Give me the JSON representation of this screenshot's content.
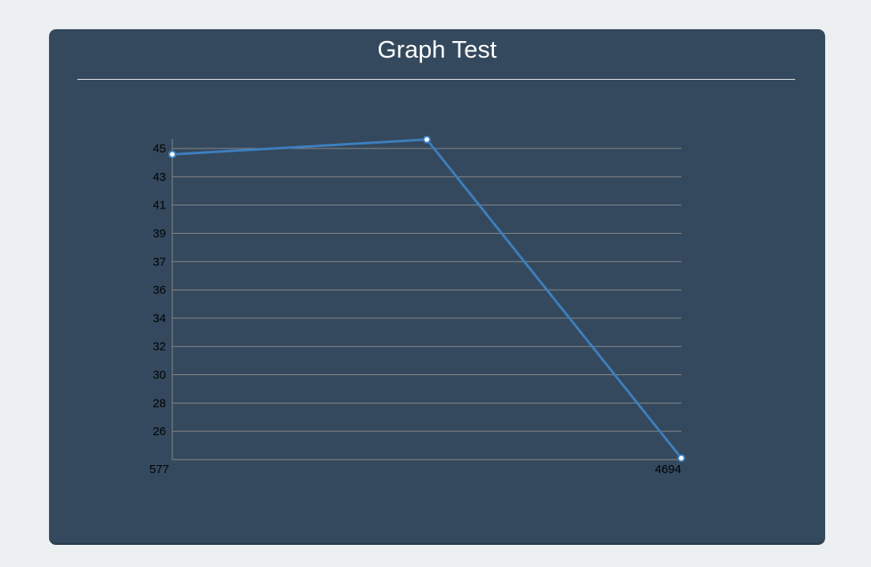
{
  "card": {
    "title": "Graph Test"
  },
  "colors": {
    "page_bg": "#ecf0f1",
    "card_bg": "#34495e",
    "line": "#3d7fbf",
    "grid": "#8a8a8a",
    "point_fill": "#ffffff"
  },
  "chart_data": {
    "type": "line",
    "title": "Graph Test",
    "x": [
      0,
      1,
      2
    ],
    "x_tick_labels": [
      "577",
      "4694"
    ],
    "series": [
      {
        "values": [
          44.6,
          45.6,
          24.2
        ]
      }
    ],
    "y_ticks": [
      26,
      28,
      30,
      32,
      34,
      36,
      37,
      39,
      41,
      43,
      45
    ],
    "ylim": [
      24.2,
      45.6
    ],
    "grid": true
  }
}
